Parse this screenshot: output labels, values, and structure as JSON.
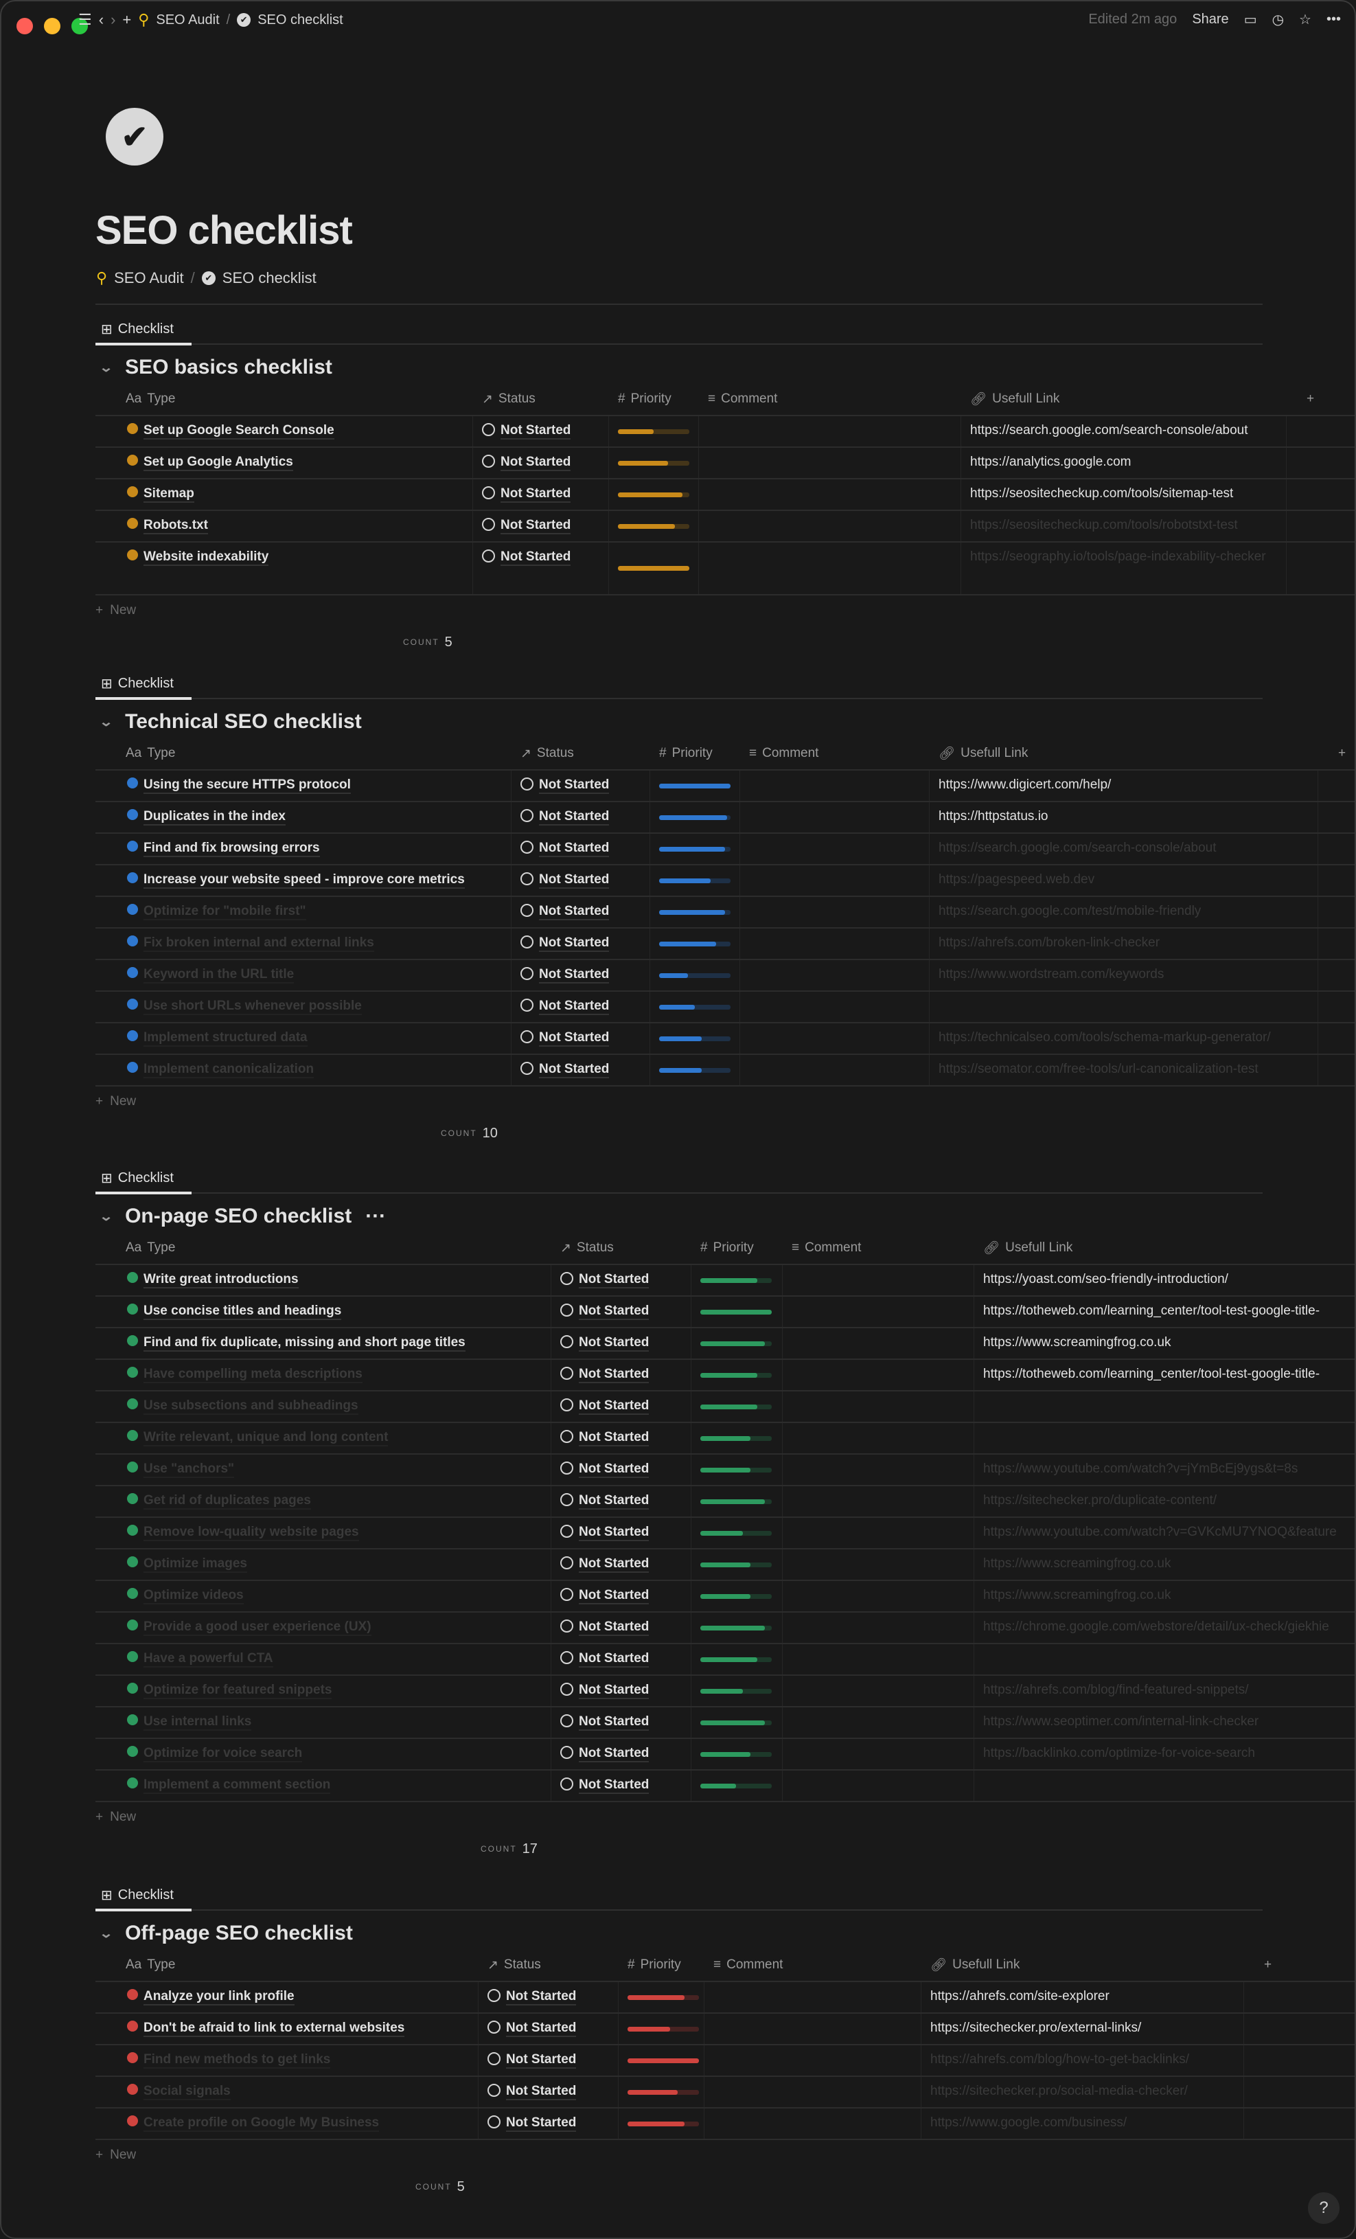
{
  "topbar": {
    "breadcrumb": [
      "SEO Audit",
      "SEO checklist"
    ],
    "separator": "/",
    "edited": "Edited 2m ago",
    "share": "Share"
  },
  "page": {
    "title": "SEO checklist",
    "breadcrumb": [
      "SEO Audit",
      "SEO checklist"
    ],
    "separator": "/"
  },
  "colors": {
    "basics": "#c98a1a",
    "technical": "#2f78d0",
    "onpage": "#2d9a5f",
    "offpage": "#d0443f"
  },
  "headers": {
    "type": "Type",
    "type_prefix": "Aa",
    "status": "Status",
    "priority": "Priority",
    "comment": "Comment",
    "link": "Usefull Link"
  },
  "new_label": "New",
  "count_label": "COUNT",
  "view_label": "Checklist",
  "sections": [
    {
      "key": "basics",
      "title": "SEO basics checklist",
      "count": "5",
      "rows": [
        {
          "name": "Set up Google Search Console",
          "status": "Not Started",
          "priority": 0.5,
          "link": "https://search.google.com/search-console/about",
          "dim": false
        },
        {
          "name": "Set up Google Analytics",
          "status": "Not Started",
          "priority": 0.7,
          "link": "https://analytics.google.com",
          "dim": false
        },
        {
          "name": "Sitemap",
          "status": "Not Started",
          "priority": 0.9,
          "link": "https://seositecheckup.com/tools/sitemap-test",
          "dim": false
        },
        {
          "name": "Robots.txt",
          "status": "Not Started",
          "priority": 0.8,
          "link": "https://seositecheckup.com/tools/robotstxt-test",
          "dim": false,
          "linkdim": true
        },
        {
          "name": "Website indexability",
          "status": "Not Started",
          "priority": 1.0,
          "link": "https://seography.io/tools/page-indexability-checker",
          "dim": false,
          "linkdim": true
        }
      ]
    },
    {
      "key": "technical",
      "title": "Technical SEO checklist",
      "count": "10",
      "rows": [
        {
          "name": "Using the secure HTTPS protocol",
          "status": "Not Started",
          "priority": 1.0,
          "link": "https://www.digicert.com/help/",
          "dim": false
        },
        {
          "name": "Duplicates in the index",
          "status": "Not Started",
          "priority": 0.95,
          "link": "https://httpstatus.io",
          "dim": false
        },
        {
          "name": "Find and fix browsing errors",
          "status": "Not Started",
          "priority": 0.92,
          "link": "https://search.google.com/search-console/about",
          "dim": false,
          "linkdim": true
        },
        {
          "name": "Increase your website speed - improve core metrics",
          "status": "Not Started",
          "priority": 0.72,
          "link": "https://pagespeed.web.dev",
          "dim": false,
          "linkdim": true
        },
        {
          "name": "Optimize for \"mobile first\"",
          "status": "Not Started",
          "priority": 0.92,
          "link": "https://search.google.com/test/mobile-friendly",
          "dim": true
        },
        {
          "name": "Fix broken internal and external links",
          "status": "Not Started",
          "priority": 0.8,
          "link": "https://ahrefs.com/broken-link-checker",
          "dim": true
        },
        {
          "name": "Keyword in the URL title",
          "status": "Not Started",
          "priority": 0.4,
          "link": "https://www.wordstream.com/keywords",
          "dim": true
        },
        {
          "name": "Use short URLs whenever possible",
          "status": "Not Started",
          "priority": 0.5,
          "link": "",
          "dim": true
        },
        {
          "name": "Implement structured data",
          "status": "Not Started",
          "priority": 0.6,
          "link": "https://technicalseo.com/tools/schema-markup-generator/",
          "dim": true
        },
        {
          "name": "Implement canonicalization",
          "status": "Not Started",
          "priority": 0.6,
          "link": "https://seomator.com/free-tools/url-canonicalization-test",
          "dim": true
        }
      ]
    },
    {
      "key": "onpage",
      "title": "On-page SEO checklist",
      "more": "···",
      "count": "17",
      "rows": [
        {
          "name": "Write great introductions",
          "status": "Not Started",
          "priority": 0.8,
          "link": "https://yoast.com/seo-friendly-introduction/",
          "dim": false
        },
        {
          "name": "Use concise titles and headings",
          "status": "Not Started",
          "priority": 1.0,
          "link": "https://totheweb.com/learning_center/tool-test-google-title-",
          "dim": false
        },
        {
          "name": "Find and fix duplicate, missing and short page titles",
          "status": "Not Started",
          "priority": 0.9,
          "link": "https://www.screamingfrog.co.uk",
          "dim": false
        },
        {
          "name": "Have compelling meta descriptions",
          "status": "Not Started",
          "priority": 0.8,
          "link": "https://totheweb.com/learning_center/tool-test-google-title-",
          "dim": true,
          "linkdim": false
        },
        {
          "name": "Use subsections and subheadings",
          "status": "Not Started",
          "priority": 0.8,
          "link": "",
          "dim": true
        },
        {
          "name": "Write relevant, unique and long content",
          "status": "Not Started",
          "priority": 0.7,
          "link": "",
          "dim": true
        },
        {
          "name": "Use \"anchors\"",
          "status": "Not Started",
          "priority": 0.7,
          "link": "https://www.youtube.com/watch?v=jYmBcEj9ygs&t=8s",
          "dim": true
        },
        {
          "name": "Get rid of duplicates pages",
          "status": "Not Started",
          "priority": 0.9,
          "link": "https://sitechecker.pro/duplicate-content/",
          "dim": true
        },
        {
          "name": "Remove low-quality website pages",
          "status": "Not Started",
          "priority": 0.6,
          "link": "https://www.youtube.com/watch?v=GVKcMU7YNOQ&feature",
          "dim": true
        },
        {
          "name": "Optimize images",
          "status": "Not Started",
          "priority": 0.7,
          "link": "https://www.screamingfrog.co.uk",
          "dim": true
        },
        {
          "name": "Optimize videos",
          "status": "Not Started",
          "priority": 0.7,
          "link": "https://www.screamingfrog.co.uk",
          "dim": true
        },
        {
          "name": "Provide a good user experience (UX)",
          "status": "Not Started",
          "priority": 0.9,
          "link": "https://chrome.google.com/webstore/detail/ux-check/giekhie",
          "dim": true
        },
        {
          "name": "Have a powerful CTA",
          "status": "Not Started",
          "priority": 0.8,
          "link": "",
          "dim": true
        },
        {
          "name": "Optimize for featured snippets",
          "status": "Not Started",
          "priority": 0.6,
          "link": "https://ahrefs.com/blog/find-featured-snippets/",
          "dim": true
        },
        {
          "name": "Use internal links",
          "status": "Not Started",
          "priority": 0.9,
          "link": "https://www.seoptimer.com/internal-link-checker",
          "dim": true
        },
        {
          "name": "Optimize for voice search",
          "status": "Not Started",
          "priority": 0.7,
          "link": "https://backlinko.com/optimize-for-voice-search",
          "dim": true
        },
        {
          "name": "Implement a comment section",
          "status": "Not Started",
          "priority": 0.5,
          "link": "",
          "dim": true
        }
      ]
    },
    {
      "key": "offpage",
      "title": "Off-page SEO checklist",
      "count": "5",
      "rows": [
        {
          "name": "Analyze your link profile",
          "status": "Not Started",
          "priority": 0.8,
          "link": "https://ahrefs.com/site-explorer",
          "dim": false
        },
        {
          "name": "Don't be afraid to link to external websites",
          "status": "Not Started",
          "priority": 0.6,
          "link": "https://sitechecker.pro/external-links/",
          "dim": false
        },
        {
          "name": "Find new methods to get links",
          "status": "Not Started",
          "priority": 1.0,
          "link": "https://ahrefs.com/blog/how-to-get-backlinks/",
          "dim": true
        },
        {
          "name": "Social signals",
          "status": "Not Started",
          "priority": 0.7,
          "link": "https://sitechecker.pro/social-media-checker/",
          "dim": true
        },
        {
          "name": "Create profile on Google My Business",
          "status": "Not Started",
          "priority": 0.8,
          "link": "https://www.google.com/business/",
          "dim": true
        }
      ]
    }
  ]
}
